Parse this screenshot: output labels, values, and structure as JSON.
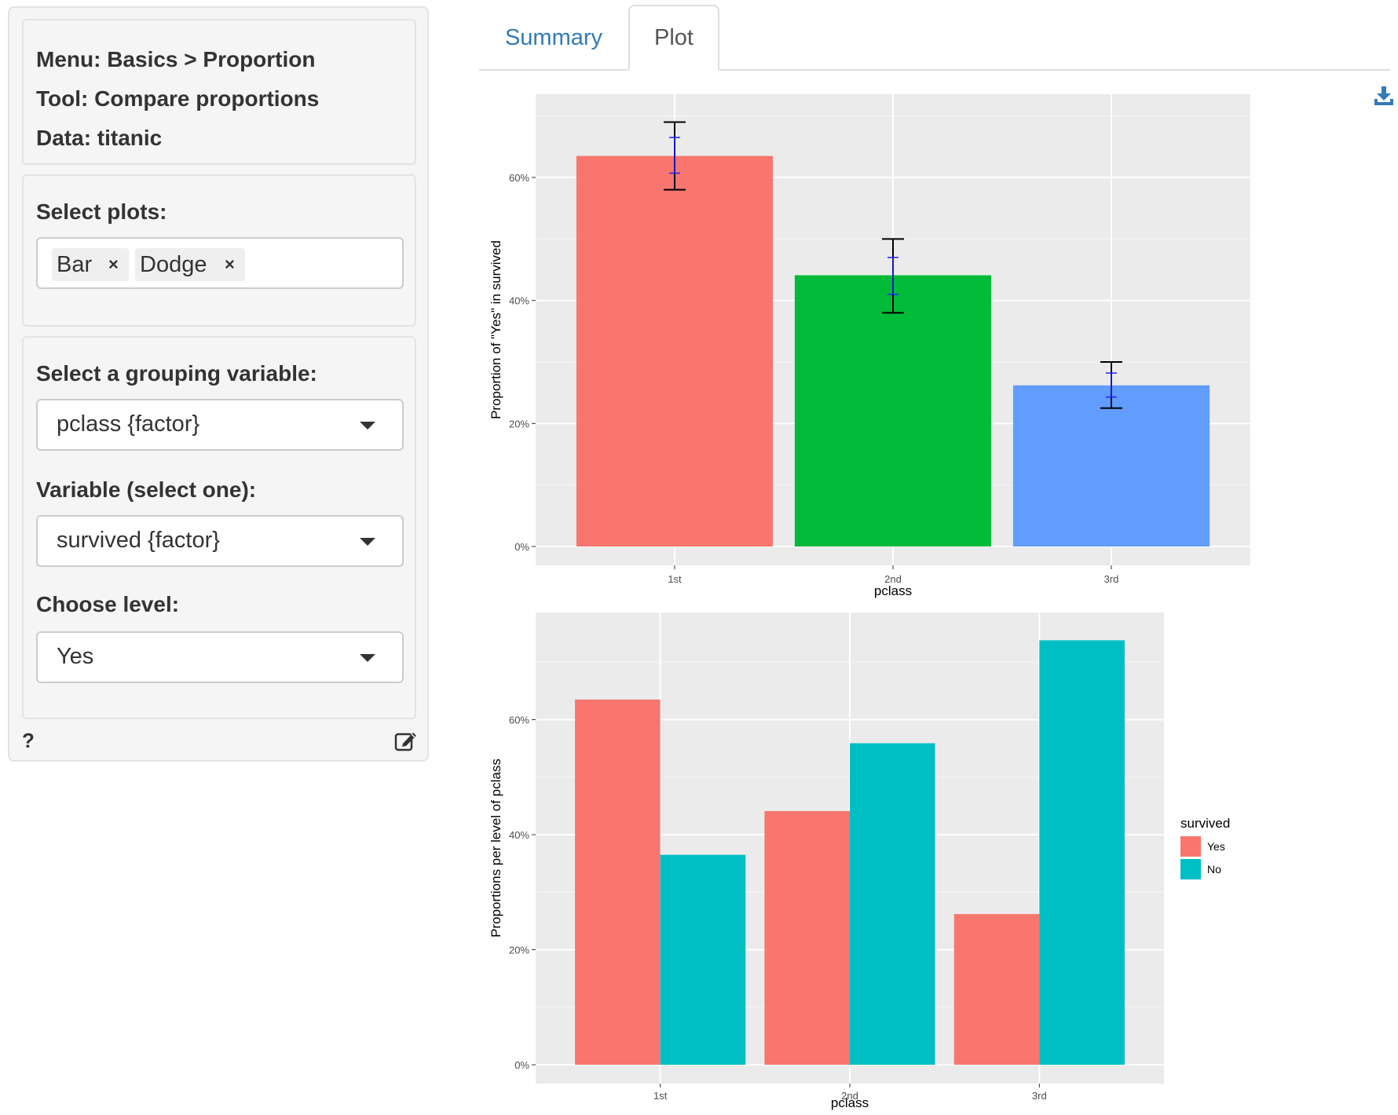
{
  "sidebar": {
    "info": {
      "menu": "Menu: Basics > Proportion",
      "tool": "Tool: Compare proportions",
      "data": "Data: titanic"
    },
    "select_plots": {
      "label": "Select plots:",
      "chips": [
        "Bar",
        "Dodge"
      ],
      "remove_symbol": "×"
    },
    "grouping": {
      "label": "Select a grouping variable:",
      "value": "pclass {factor}"
    },
    "variable": {
      "label": "Variable (select one):",
      "value": "survived {factor}"
    },
    "level": {
      "label": "Choose level:",
      "value": "Yes"
    },
    "footer": {
      "help": "?",
      "edit_icon": "edit-icon"
    }
  },
  "tabs": [
    {
      "label": "Summary",
      "active": false
    },
    {
      "label": "Plot",
      "active": true
    }
  ],
  "download_icon": "download-icon",
  "colors": {
    "accent_link": "#337ab7",
    "panel_bg": "#ebebeb",
    "red": "#F8766D",
    "green": "#00BA38",
    "blue": "#619CFF",
    "teal": "#00BFC4"
  },
  "chart_data": [
    {
      "type": "bar",
      "categories": [
        "1st",
        "2nd",
        "3rd"
      ],
      "values": [
        0.635,
        0.441,
        0.262
      ],
      "error_outer": [
        [
          0.58,
          0.69
        ],
        [
          0.38,
          0.5
        ],
        [
          0.225,
          0.3
        ]
      ],
      "error_inner": [
        [
          0.607,
          0.665
        ],
        [
          0.41,
          0.47
        ],
        [
          0.243,
          0.282
        ]
      ],
      "xlabel": "pclass",
      "ylabel": "Proportion of \"Yes\" in survived",
      "ylim": [
        0,
        0.72
      ],
      "yticks": [
        0,
        0.2,
        0.4,
        0.6
      ],
      "ytick_labels": [
        "0%",
        "20%",
        "40%",
        "60%"
      ],
      "grid": true
    },
    {
      "type": "bar",
      "categories": [
        "1st",
        "2nd",
        "3rd"
      ],
      "series": [
        {
          "name": "Yes",
          "values": [
            0.635,
            0.441,
            0.262
          ]
        },
        {
          "name": "No",
          "values": [
            0.365,
            0.559,
            0.738
          ]
        }
      ],
      "xlabel": "pclass",
      "ylabel": "Proportions per level of pclass",
      "ylim": [
        0,
        0.77
      ],
      "yticks": [
        0,
        0.2,
        0.4,
        0.6
      ],
      "ytick_labels": [
        "0%",
        "20%",
        "40%",
        "60%"
      ],
      "legend_title": "survived",
      "legend_position": "right",
      "grid": true
    }
  ]
}
